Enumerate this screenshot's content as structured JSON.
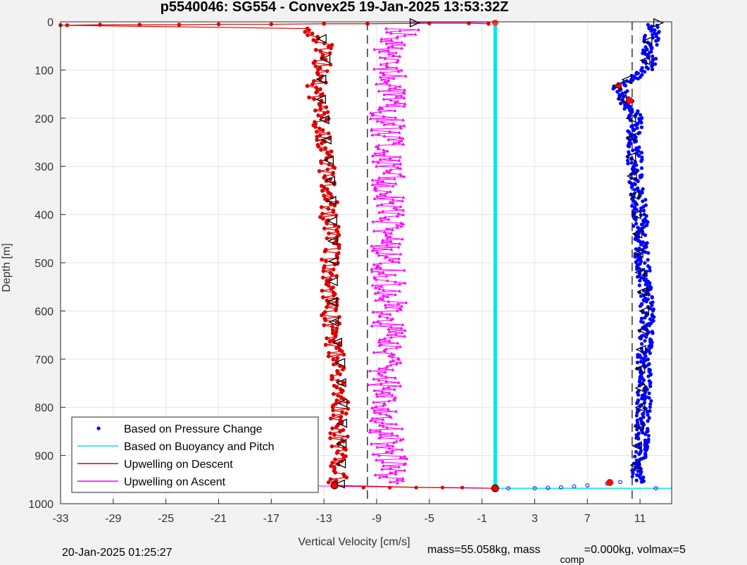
{
  "chart_data": {
    "type": "scatter",
    "title": "p5540046: SG554 - Convex25 19-Jan-2025 13:53:32Z",
    "xlabel": "Vertical Velocity [cm/s]",
    "ylabel": "Depth [m]",
    "xlim": [
      -33,
      13.4
    ],
    "ylim": [
      0,
      1000
    ],
    "y_reversed": true,
    "grid": true,
    "x_ticks": [
      -33,
      -29,
      -25,
      -21,
      -17,
      -13,
      -9,
      -5,
      -1,
      3,
      7,
      11
    ],
    "y_ticks": [
      0,
      100,
      200,
      300,
      400,
      500,
      600,
      700,
      800,
      900,
      1000
    ],
    "legend_position": "bottom-left",
    "reference_lines_x": [
      -9.7,
      0,
      10.4
    ],
    "series": [
      {
        "name": "Based on Pressure Change",
        "color": "#0000ff",
        "marker": "dot",
        "profile": [
          [
            0,
            12.0
          ],
          [
            50,
            11.8
          ],
          [
            100,
            11.6
          ],
          [
            135,
            9.3
          ],
          [
            160,
            9.9
          ],
          [
            200,
            10.6
          ],
          [
            300,
            10.6
          ],
          [
            400,
            11.0
          ],
          [
            500,
            11.2
          ],
          [
            600,
            11.6
          ],
          [
            700,
            11.3
          ],
          [
            800,
            11.3
          ],
          [
            900,
            11.0
          ],
          [
            955,
            10.8
          ],
          [
            968,
            9.0
          ]
        ]
      },
      {
        "name": "Based on Buoyancy and Pitch",
        "color": "#00e5ee",
        "marker": "line",
        "profile": [
          [
            0,
            0
          ],
          [
            968,
            0
          ]
        ]
      },
      {
        "name": "Upwelling on Descent",
        "color": "#dd0000",
        "marker": "dot-line",
        "profile": [
          [
            5,
            -33
          ],
          [
            7,
            -24
          ],
          [
            8,
            -16
          ],
          [
            12,
            -14
          ],
          [
            50,
            -13.0
          ],
          [
            100,
            -13.2
          ],
          [
            135,
            -13.6
          ],
          [
            200,
            -13.2
          ],
          [
            300,
            -12.8
          ],
          [
            400,
            -12.6
          ],
          [
            500,
            -12.5
          ],
          [
            600,
            -12.6
          ],
          [
            700,
            -12.0
          ],
          [
            800,
            -11.8
          ],
          [
            900,
            -11.9
          ],
          [
            960,
            -12.0
          ]
        ]
      },
      {
        "name": "Upwelling on Ascent",
        "color": "#ff00ff",
        "marker": "triangle-line",
        "profile": [
          [
            12,
            -7.0
          ],
          [
            50,
            -7.9
          ],
          [
            100,
            -7.9
          ],
          [
            200,
            -8.2
          ],
          [
            300,
            -8.0
          ],
          [
            400,
            -8.2
          ],
          [
            500,
            -8.2
          ],
          [
            600,
            -8.0
          ],
          [
            700,
            -8.3
          ],
          [
            800,
            -8.5
          ],
          [
            900,
            -8.0
          ],
          [
            960,
            -7.8
          ]
        ]
      }
    ]
  },
  "footer": {
    "timestamp": "20-Jan-2025 01:25:27",
    "mass_text": "mass=55.058kg, mass",
    "sub": "comp",
    "rest": "=0.000kg, volmax=5"
  }
}
